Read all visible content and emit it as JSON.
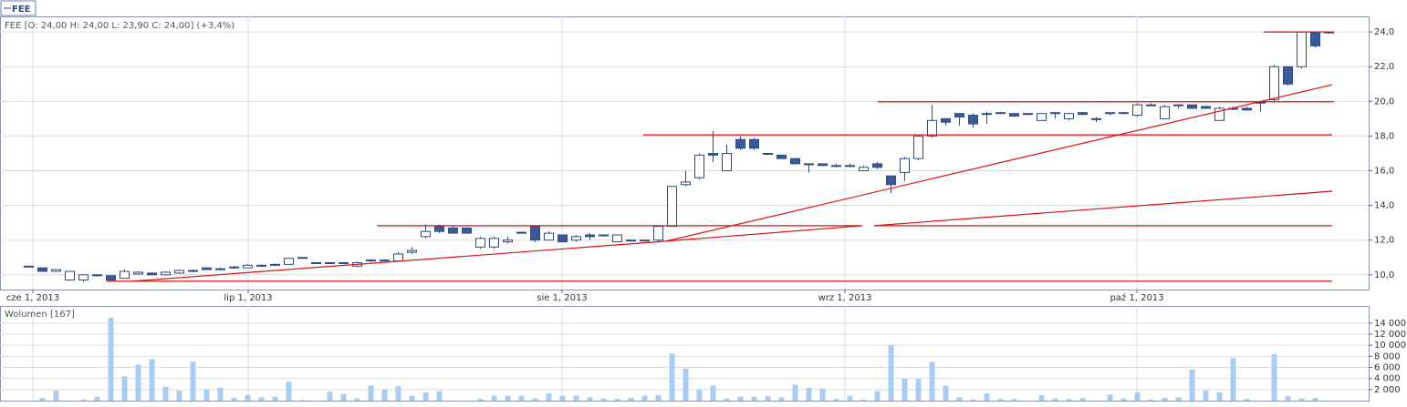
{
  "chart_data": [
    {
      "type": "candlestick",
      "name": "FEE",
      "title": "FEE [O: 24,00  H: 24,00  L: 23,90  C: 24,00] (+3,4%)",
      "open": [
        10.5,
        10.4,
        10.2,
        9.7,
        9.7,
        10.0,
        9.95,
        9.8,
        10.05,
        10.1,
        10.0,
        10.1,
        10.2,
        10.4,
        10.3,
        10.4,
        10.4,
        10.5,
        10.55,
        10.6,
        11.0,
        10.7,
        10.7,
        10.7,
        10.5,
        10.8,
        10.8,
        10.8,
        11.3,
        12.2,
        12.8,
        12.7,
        12.7,
        11.6,
        11.6,
        11.9,
        12.4,
        12.8,
        12.0,
        12.3,
        12.0,
        12.3,
        12.3,
        11.9,
        12.0,
        12.0,
        12.0,
        12.8,
        15.2,
        15.6,
        17.0,
        16.0,
        17.8,
        17.8,
        17.0,
        16.9,
        16.7,
        16.4,
        16.4,
        16.3,
        16.3,
        16.0,
        16.4,
        15.7,
        15.9,
        16.7,
        18.0,
        19.0,
        19.3,
        19.2,
        19.3,
        19.35,
        19.3,
        19.3,
        18.9,
        19.3,
        19.0,
        19.35,
        19.0,
        19.3,
        19.35,
        19.2,
        19.8,
        19.0,
        19.8,
        19.8,
        19.7,
        18.9,
        19.6,
        19.6,
        19.9,
        20.1,
        22.0,
        22.0,
        24.0,
        24.0
      ],
      "high": [
        10.5,
        10.4,
        10.3,
        10.2,
        10.0,
        10.0,
        9.95,
        10.3,
        10.2,
        10.1,
        10.2,
        10.3,
        10.3,
        10.4,
        10.4,
        10.5,
        10.6,
        10.6,
        10.65,
        11.0,
        11.0,
        10.7,
        10.7,
        10.7,
        10.75,
        10.9,
        10.9,
        11.3,
        11.6,
        12.9,
        12.9,
        12.8,
        12.7,
        12.2,
        12.2,
        12.2,
        12.5,
        12.8,
        12.5,
        12.3,
        12.3,
        12.4,
        12.3,
        12.3,
        12.0,
        12.0,
        12.8,
        15.1,
        16.0,
        17.0,
        18.3,
        17.5,
        18.0,
        17.9,
        17.0,
        16.9,
        16.7,
        16.4,
        16.4,
        16.4,
        16.4,
        16.3,
        16.5,
        15.7,
        16.8,
        18.0,
        19.8,
        19.0,
        19.3,
        19.3,
        19.4,
        19.4,
        19.3,
        19.3,
        19.3,
        19.4,
        19.35,
        19.4,
        19.1,
        19.35,
        19.4,
        19.9,
        19.9,
        19.8,
        19.85,
        19.8,
        19.75,
        19.7,
        19.7,
        19.7,
        20.0,
        22.1,
        22.0,
        24.0,
        24.0,
        24.0
      ],
      "low": [
        10.5,
        10.2,
        10.2,
        9.65,
        9.6,
        9.9,
        9.65,
        9.8,
        10.0,
        10.0,
        10.0,
        10.05,
        10.15,
        10.3,
        10.25,
        10.35,
        10.4,
        10.45,
        10.5,
        10.6,
        11.0,
        10.7,
        10.6,
        10.65,
        10.45,
        10.75,
        10.8,
        10.8,
        11.2,
        12.1,
        12.4,
        12.4,
        12.4,
        11.5,
        11.5,
        11.8,
        12.4,
        11.9,
        12.0,
        11.9,
        11.9,
        12.0,
        12.2,
        11.9,
        11.9,
        12.0,
        11.9,
        12.8,
        15.1,
        15.5,
        16.5,
        16.0,
        17.2,
        17.2,
        16.9,
        16.7,
        16.4,
        15.9,
        16.3,
        16.2,
        16.2,
        16.0,
        16.1,
        14.7,
        15.4,
        16.6,
        17.9,
        18.6,
        18.6,
        18.5,
        18.7,
        19.3,
        19.1,
        19.2,
        18.9,
        19.0,
        18.9,
        19.2,
        18.8,
        19.2,
        19.3,
        19.1,
        19.75,
        19.0,
        19.6,
        19.6,
        19.6,
        18.9,
        19.5,
        19.5,
        19.4,
        20.0,
        20.9,
        21.9,
        23.1,
        23.9
      ],
      "close": [
        10.5,
        10.2,
        10.3,
        10.2,
        10.0,
        10.0,
        9.7,
        10.2,
        10.15,
        10.0,
        10.15,
        10.25,
        10.25,
        10.3,
        10.35,
        10.45,
        10.55,
        10.55,
        10.6,
        10.95,
        11.0,
        10.7,
        10.65,
        10.7,
        10.7,
        10.85,
        10.85,
        11.2,
        11.4,
        12.5,
        12.5,
        12.4,
        12.4,
        12.1,
        12.1,
        12.0,
        12.45,
        12.0,
        12.4,
        11.9,
        12.2,
        12.2,
        12.3,
        12.3,
        12.0,
        12.0,
        12.8,
        15.1,
        15.35,
        16.9,
        16.9,
        17.0,
        17.3,
        17.3,
        17.0,
        16.7,
        16.4,
        16.4,
        16.3,
        16.3,
        16.3,
        16.2,
        16.2,
        15.2,
        16.7,
        18.0,
        18.9,
        18.8,
        19.1,
        18.7,
        19.3,
        19.35,
        19.15,
        19.3,
        19.3,
        19.35,
        19.3,
        19.25,
        19.0,
        19.35,
        19.35,
        19.8,
        19.8,
        19.7,
        19.8,
        19.6,
        19.6,
        19.6,
        19.6,
        19.5,
        19.95,
        22.0,
        21.0,
        24.0,
        23.2,
        24.0
      ],
      "up_color": "#ffffff",
      "down_color": "#3b5998",
      "edge_color": "#2d4a86",
      "xlim": [
        -2.0667,
        97.9333
      ],
      "xticks": [
        {
          "value": 0.33,
          "label": "cze 1, 2013"
        },
        {
          "value": 16.07,
          "label": "lip 1, 2013"
        },
        {
          "value": 39.0,
          "label": "sie 1, 2013"
        },
        {
          "value": 59.67,
          "label": "wrz 1, 2013"
        },
        {
          "value": 81.0,
          "label": "paź 1, 2013"
        }
      ],
      "ylim": [
        9.15,
        24.9
      ],
      "yticks": [
        {
          "value": 10,
          "label": "10,0"
        },
        {
          "value": 12,
          "label": "12,0"
        },
        {
          "value": 14,
          "label": "14,0"
        },
        {
          "value": 16,
          "label": "16,0"
        },
        {
          "value": 18,
          "label": "18,0"
        },
        {
          "value": 20,
          "label": "20,0"
        },
        {
          "value": 22,
          "label": "22,0"
        },
        {
          "value": 24,
          "label": "24,0"
        }
      ],
      "grid": true,
      "trendline_color": "#dd1111",
      "trendlines": [
        {
          "x": [
            5.73,
            95.27
          ],
          "y": [
            9.63,
            9.63
          ]
        },
        {
          "x": [
            7.6,
            46.6
          ],
          "y": [
            9.63,
            11.94
          ]
        },
        {
          "x": [
            46.6,
            95.27
          ],
          "y": [
            11.94,
            20.96
          ]
        },
        {
          "x": [
            46.6,
            60.93
          ],
          "y": [
            11.94,
            12.83
          ]
        },
        {
          "x": [
            61.8,
            95.27
          ],
          "y": [
            12.83,
            14.82
          ]
        },
        {
          "x": [
            25.47,
            60.93
          ],
          "y": [
            12.83,
            12.83
          ]
        },
        {
          "x": [
            61.8,
            95.27
          ],
          "y": [
            12.83,
            12.83
          ]
        },
        {
          "x": [
            44.93,
            95.27
          ],
          "y": [
            18.07,
            18.07
          ]
        },
        {
          "x": [
            62.07,
            95.4
          ],
          "y": [
            19.98,
            19.98
          ]
        },
        {
          "x": [
            90.27,
            95.4
          ],
          "y": [
            24.0,
            24.0
          ]
        }
      ]
    },
    {
      "type": "bar",
      "title": "Wolumen [167]",
      "color": "#a8cdf3",
      "values": [
        0,
        500,
        1800,
        0,
        200,
        700,
        15000,
        4400,
        6500,
        7500,
        2500,
        1800,
        7000,
        2000,
        2300,
        500,
        1000,
        600,
        700,
        3400,
        100,
        0,
        1600,
        1200,
        400,
        2700,
        2000,
        2600,
        900,
        1500,
        1700,
        0,
        0,
        300,
        900,
        900,
        900,
        400,
        1300,
        900,
        900,
        600,
        400,
        300,
        500,
        900,
        1000,
        8500,
        5800,
        2000,
        2700,
        400,
        700,
        700,
        800,
        600,
        2900,
        2300,
        2200,
        300,
        900,
        200,
        1700,
        10000,
        4000,
        3900,
        7000,
        2700,
        600,
        200,
        1300,
        300,
        300,
        0,
        1000,
        400,
        300,
        500,
        0,
        1100,
        400,
        1500,
        200,
        500,
        600,
        5600,
        1800,
        1500,
        7700,
        300,
        0,
        8400,
        800,
        400,
        500,
        0
      ],
      "ylim": [
        0,
        17100
      ],
      "yticks": [
        {
          "value": 2000,
          "label": "2 000"
        },
        {
          "value": 4000,
          "label": "4 000"
        },
        {
          "value": 6000,
          "label": "6 000"
        },
        {
          "value": 8000,
          "label": "8 000"
        },
        {
          "value": 10000,
          "label": "10 000"
        },
        {
          "value": 12000,
          "label": "12 000"
        },
        {
          "value": 14000,
          "label": "14 000"
        }
      ],
      "grid": true
    }
  ]
}
